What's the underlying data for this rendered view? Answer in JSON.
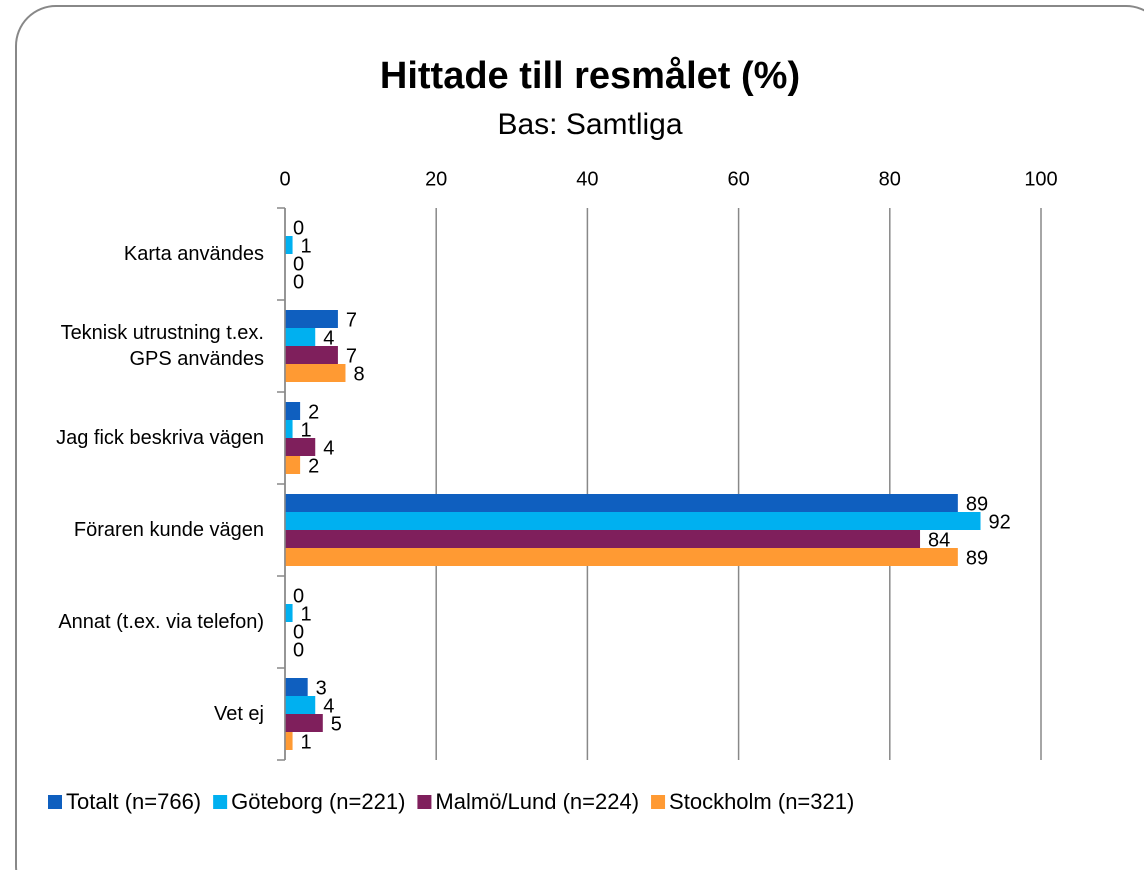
{
  "chart_data": {
    "type": "bar",
    "orientation": "horizontal",
    "title": "Hittade till resmålet (%)",
    "subtitle": "Bas: Samtliga",
    "categories": [
      "Karta användes",
      "Teknisk utrustning t.ex. GPS användes",
      "Jag fick beskriva vägen",
      "Föraren kunde vägen",
      "Annat (t.ex. via telefon)",
      "Vet ej"
    ],
    "series": [
      {
        "name": "Totalt (n=766)",
        "color": "#0f5fbf",
        "values": [
          0,
          7,
          2,
          89,
          0,
          3
        ]
      },
      {
        "name": "Göteborg (n=221)",
        "color": "#00b0f0",
        "values": [
          1,
          4,
          1,
          92,
          1,
          4
        ]
      },
      {
        "name": "Malmö/Lund (n=224)",
        "color": "#7f1f5c",
        "values": [
          0,
          7,
          4,
          84,
          0,
          5
        ]
      },
      {
        "name": "Stockholm (n=321)",
        "color": "#ff9a33",
        "values": [
          0,
          8,
          2,
          89,
          0,
          1
        ]
      }
    ],
    "xlim": [
      0,
      100
    ],
    "xticks": [
      0,
      20,
      40,
      60,
      80,
      100
    ],
    "grid": true,
    "legend": "bottom"
  }
}
